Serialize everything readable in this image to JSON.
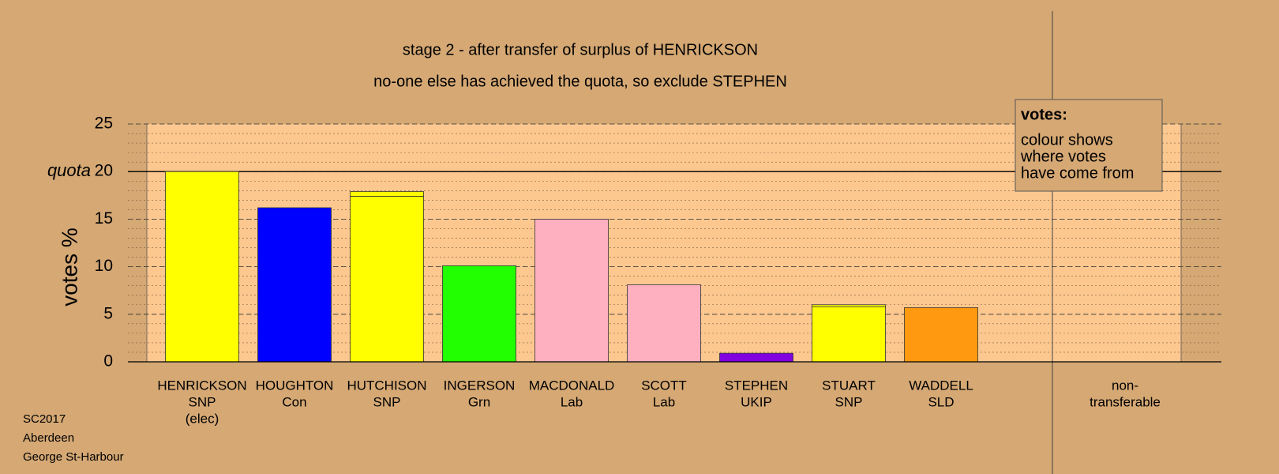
{
  "chart_data": {
    "type": "stacked-bar",
    "title": "stage 2 - after transfer of surplus of HENRICKSON",
    "subtitle": "no-one else has achieved the quota, so exclude STEPHEN",
    "ylabel": "votes %",
    "categories": [
      [
        "HENRICKSON",
        "SNP",
        "(elec)"
      ],
      [
        "HOUGHTON",
        "Con"
      ],
      [
        "HUTCHISON",
        "SNP"
      ],
      [
        "INGERSON",
        "Grn"
      ],
      [
        "MACDONALD",
        "Lab"
      ],
      [
        "SCOTT",
        "Lab"
      ],
      [
        "STEPHEN",
        "UKIP"
      ],
      [
        "STUART",
        "SNP"
      ],
      [
        "WADDELL",
        "SLD"
      ],
      [
        "non-",
        "transferable"
      ]
    ],
    "values": [
      20,
      16.2,
      17.4,
      10.1,
      15,
      8.1,
      0.9,
      5.8,
      5.7,
      0
    ],
    "colors": [
      "#ffff00",
      "#0000ff",
      "#ffff00",
      "#22ff00",
      "#ffb0c0",
      "#ffb0c0",
      "#8000e0",
      "#ffff00",
      "#ff9a10",
      "#ffff00"
    ],
    "transfers": {
      "color": "#ffff00",
      "values": [
        null,
        null,
        0.5,
        null,
        null,
        null,
        null,
        0.2,
        null,
        null
      ]
    },
    "ylim": [
      0,
      25
    ],
    "yticks": [
      0,
      5,
      10,
      15,
      20,
      25
    ],
    "minor_grid_step": 1,
    "grid": true,
    "quota": {
      "label": "quota",
      "value": 20
    },
    "legend_box": {
      "title": "votes:",
      "lines": [
        "colour shows",
        "where votes",
        "have come from"
      ]
    },
    "footer": [
      "SC2017",
      "Aberdeen",
      "George St-Harbour"
    ]
  }
}
